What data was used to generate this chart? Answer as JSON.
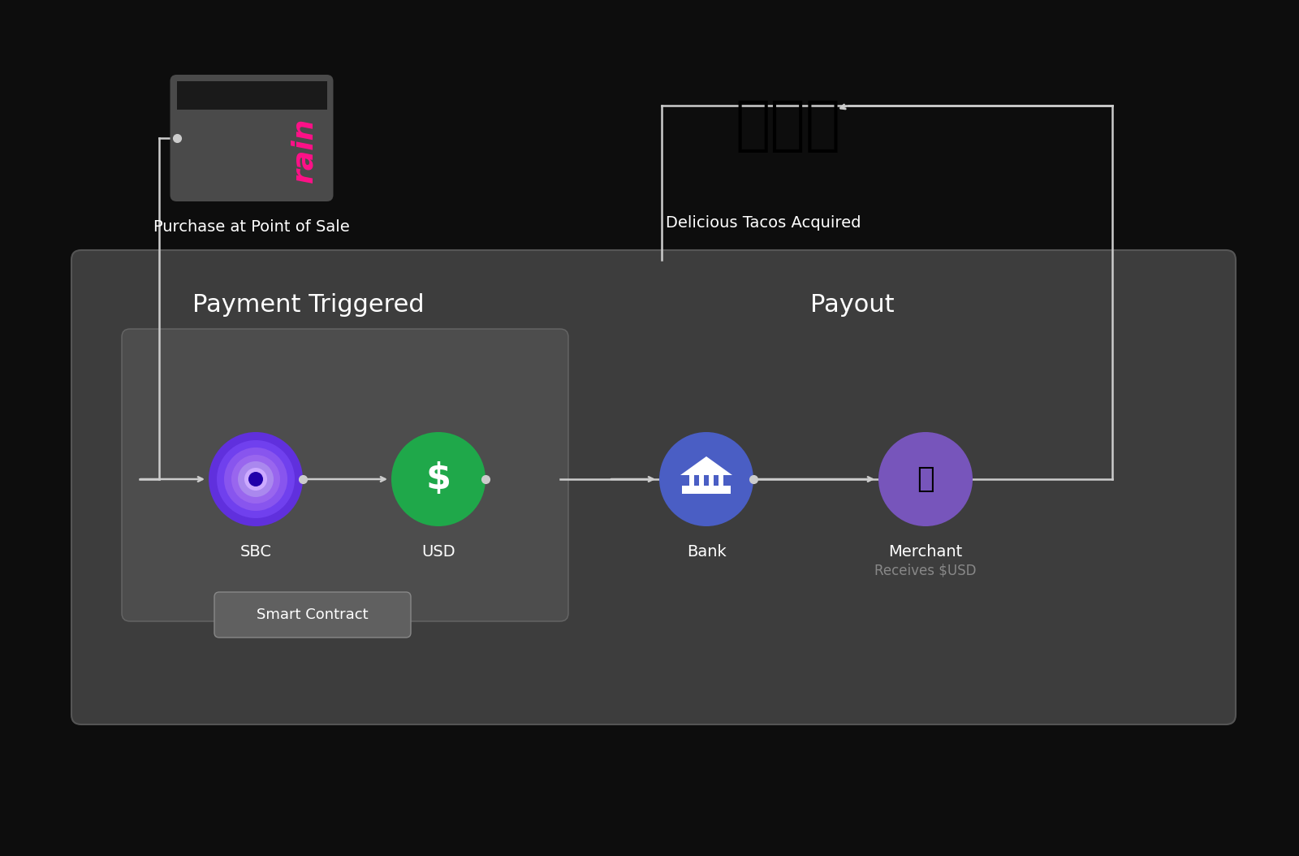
{
  "bg_color": "#0d0d0d",
  "outer_panel_color": "#3d3d3d",
  "outer_panel_edge": "#555555",
  "inner_panel_color": "#4d4d4d",
  "inner_panel_edge": "#666666",
  "sc_btn_color": "#606060",
  "sc_btn_edge": "#888888",
  "line_color": "#cccccc",
  "dot_color": "#cccccc",
  "text_color": "#ffffff",
  "text_color_dim": "#888888",
  "title_payment": "Payment Triggered",
  "title_payout": "Payout",
  "label_card": "Purchase at Point of Sale",
  "label_taco": "Delicious Tacos Acquired",
  "label_sbc": "SBC",
  "label_usd": "USD",
  "label_bank": "Bank",
  "label_merchant": "Merchant",
  "label_merchant_sub": "Receives $USD",
  "label_smart_contract": "Smart Contract",
  "usd_color": "#1fa84a",
  "bank_color": "#4a5ec4",
  "merchant_color": "#7755bb",
  "pink_color": "#bb1166",
  "card_bg": "#4a4a4a",
  "card_stripe": "#1a1a1a",
  "rain_text_color": "#ff1188",
  "sbc_rings": [
    "#6030dd",
    "#7040ee",
    "#8855ee",
    "#9966ee",
    "#aa88ee",
    "#ccaaff",
    "#eeccff"
  ],
  "sbc_center": "#2200aa"
}
